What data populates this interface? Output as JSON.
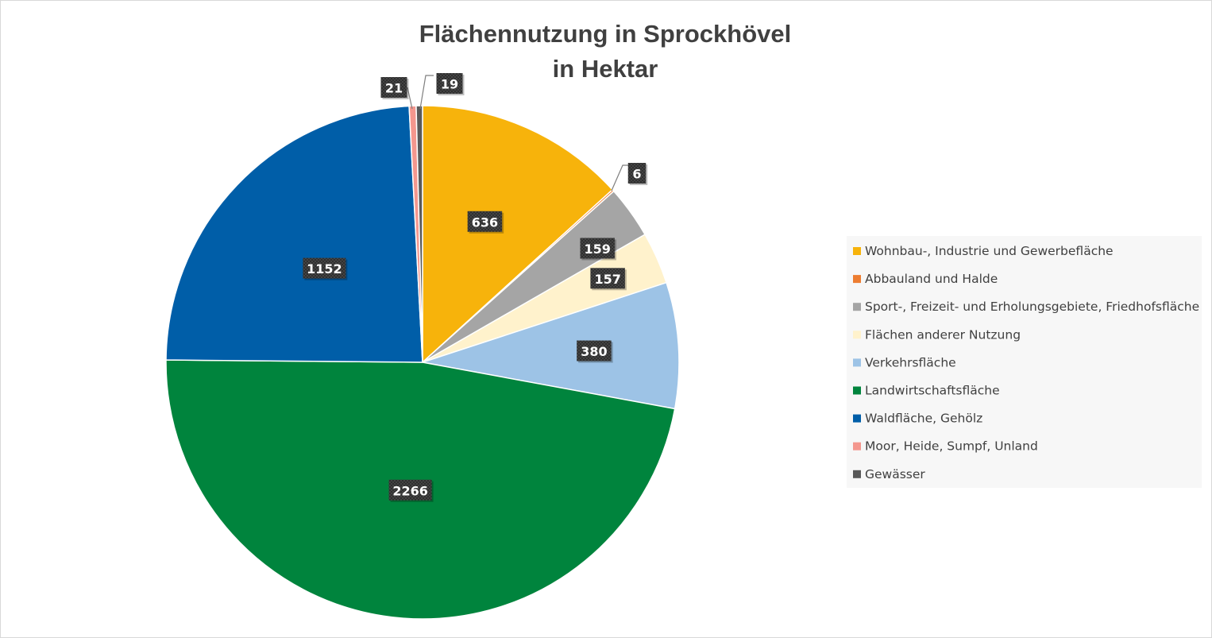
{
  "chart_data": {
    "type": "pie",
    "title": "Flächennutzung in Sprockhövel",
    "subtitle": "in Hektar",
    "slices": [
      {
        "label": "Wohnbau-, Industrie und Gewerbefläche",
        "value": 636,
        "color": "#F7B30B"
      },
      {
        "label": "Abbauland und Halde",
        "value": 6,
        "color": "#ED7D31"
      },
      {
        "label": "Sport-, Freizeit- und Erholungsgebiete, Friedhofsfläche",
        "value": 159,
        "color": "#A5A5A5"
      },
      {
        "label": "Flächen anderer Nutzung",
        "value": 157,
        "color": "#FFF2CC"
      },
      {
        "label": "Verkehrsfläche",
        "value": 380,
        "color": "#9DC3E6"
      },
      {
        "label": "Landwirtschaftsfläche",
        "value": 2266,
        "color": "#00843D"
      },
      {
        "label": "Waldfläche, Gehölz",
        "value": 1152,
        "color": "#005EA8"
      },
      {
        "label": "Moor, Heide, Sumpf, Unland",
        "value": 21,
        "color": "#F4978E"
      },
      {
        "label": "Gewässer",
        "value": 19,
        "color": "#595959"
      }
    ],
    "legend_position": "right",
    "data_labels": true
  }
}
